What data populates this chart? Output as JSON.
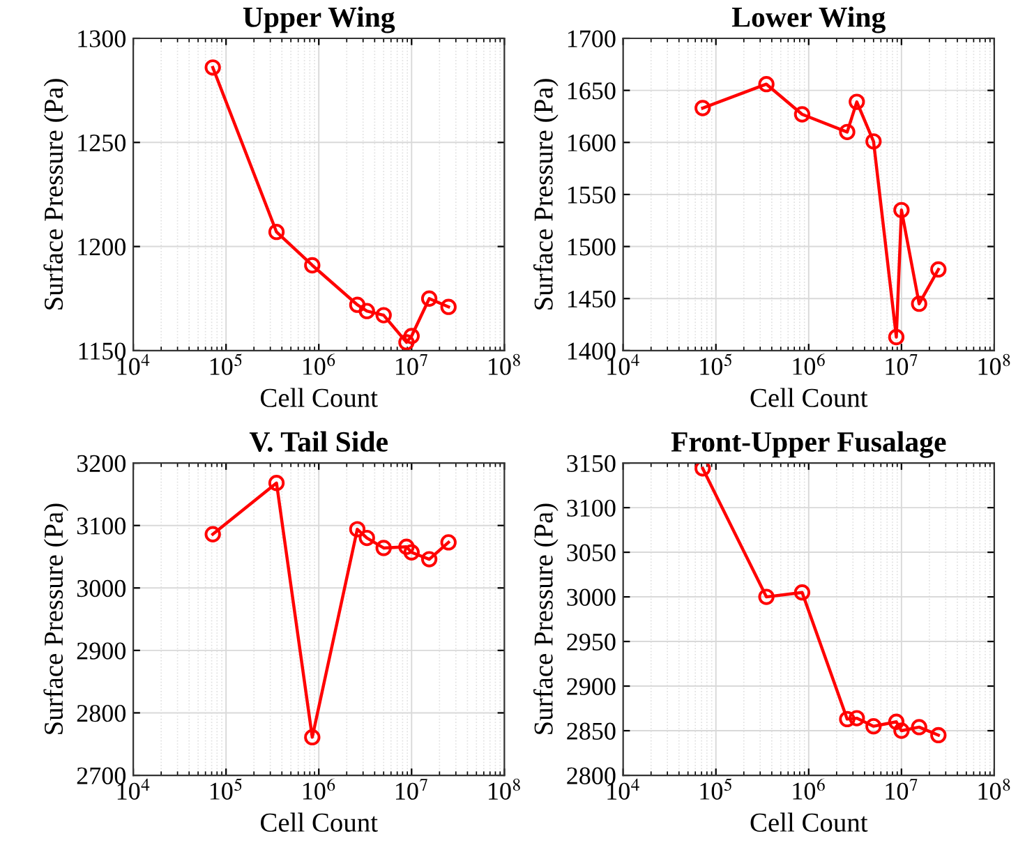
{
  "chart_data": [
    {
      "type": "line",
      "title": "Upper Wing",
      "xlabel": "Cell Count",
      "ylabel": "Surface Pressure (Pa)",
      "log": "x",
      "grid": true,
      "marker": "circle",
      "line_style": "solid",
      "xlim": [
        10000,
        100000000
      ],
      "xticks": [
        {
          "value": 10000,
          "label": "10$^{4}$"
        },
        {
          "value": 100000,
          "label": "10$^{5}$"
        },
        {
          "value": 1000000,
          "label": "10$^{6}$"
        },
        {
          "value": 10000000,
          "label": "10$^{7}$"
        },
        {
          "value": 100000000,
          "label": "10$^{8}$"
        }
      ],
      "ylim": [
        1150,
        1300
      ],
      "yticks": [
        1150,
        1200,
        1250,
        1300
      ],
      "x": [
        72000,
        350000,
        850000,
        2600000,
        3300000,
        5000000,
        8800000,
        10000000,
        15500000,
        25000000
      ],
      "series": [
        {
          "color": "#ff0000",
          "values": [
            1286,
            1207,
            1191,
            1172,
            1169,
            1167,
            1154,
            1157,
            1175,
            1171
          ]
        }
      ]
    },
    {
      "type": "line",
      "title": "Lower Wing",
      "xlabel": "Cell Count",
      "ylabel": "Surface Pressure (Pa)",
      "log": "x",
      "grid": true,
      "marker": "circle",
      "line_style": "solid",
      "xlim": [
        10000,
        100000000
      ],
      "xticks": [
        {
          "value": 10000,
          "label": "10$^{4}$"
        },
        {
          "value": 100000,
          "label": "10$^{5}$"
        },
        {
          "value": 1000000,
          "label": "10$^{6}$"
        },
        {
          "value": 10000000,
          "label": "10$^{7}$"
        },
        {
          "value": 100000000,
          "label": "10$^{8}$"
        }
      ],
      "ylim": [
        1400,
        1700
      ],
      "yticks": [
        1400,
        1450,
        1500,
        1550,
        1600,
        1650,
        1700
      ],
      "x": [
        72000,
        350000,
        850000,
        2600000,
        3300000,
        5000000,
        8800000,
        10000000,
        15500000,
        25000000
      ],
      "series": [
        {
          "color": "#ff0000",
          "values": [
            1633,
            1656,
            1627,
            1610,
            1639,
            1601,
            1413,
            1535,
            1445,
            1478
          ]
        }
      ]
    },
    {
      "type": "line",
      "title": "V. Tail Side",
      "xlabel": "Cell Count",
      "ylabel": "Surface Pressure (Pa)",
      "log": "x",
      "grid": true,
      "marker": "circle",
      "line_style": "solid",
      "xlim": [
        10000,
        100000000
      ],
      "xticks": [
        {
          "value": 10000,
          "label": "10$^{4}$"
        },
        {
          "value": 100000,
          "label": "10$^{5}$"
        },
        {
          "value": 1000000,
          "label": "10$^{6}$"
        },
        {
          "value": 10000000,
          "label": "10$^{7}$"
        },
        {
          "value": 100000000,
          "label": "10$^{8}$"
        }
      ],
      "ylim": [
        2700,
        3200
      ],
      "yticks": [
        2700,
        2800,
        2900,
        3000,
        3100,
        3200
      ],
      "x": [
        72000,
        350000,
        850000,
        2600000,
        3300000,
        5000000,
        8800000,
        10000000,
        15500000,
        25000000
      ],
      "series": [
        {
          "color": "#ff0000",
          "values": [
            3086,
            3168,
            2761,
            3094,
            3080,
            3064,
            3066,
            3057,
            3046,
            3073
          ]
        }
      ]
    },
    {
      "type": "line",
      "title": "Front-Upper Fusalage",
      "xlabel": "Cell Count",
      "ylabel": "Surface Pressure (Pa)",
      "log": "x",
      "grid": true,
      "marker": "circle",
      "line_style": "solid",
      "xlim": [
        10000,
        100000000
      ],
      "xticks": [
        {
          "value": 10000,
          "label": "10$^{4}$"
        },
        {
          "value": 100000,
          "label": "10$^{5}$"
        },
        {
          "value": 1000000,
          "label": "10$^{6}$"
        },
        {
          "value": 10000000,
          "label": "10$^{7}$"
        },
        {
          "value": 100000000,
          "label": "10$^{8}$"
        }
      ],
      "ylim": [
        2800,
        3150
      ],
      "yticks": [
        2800,
        2850,
        2900,
        2950,
        3000,
        3050,
        3100,
        3150
      ],
      "x": [
        72000,
        350000,
        850000,
        2600000,
        3300000,
        5000000,
        8800000,
        10000000,
        15500000,
        25000000
      ],
      "series": [
        {
          "color": "#ff0000",
          "values": [
            3144,
            3000,
            3005,
            2863,
            2864,
            2855,
            2860,
            2850,
            2854,
            2845
          ]
        }
      ]
    }
  ]
}
